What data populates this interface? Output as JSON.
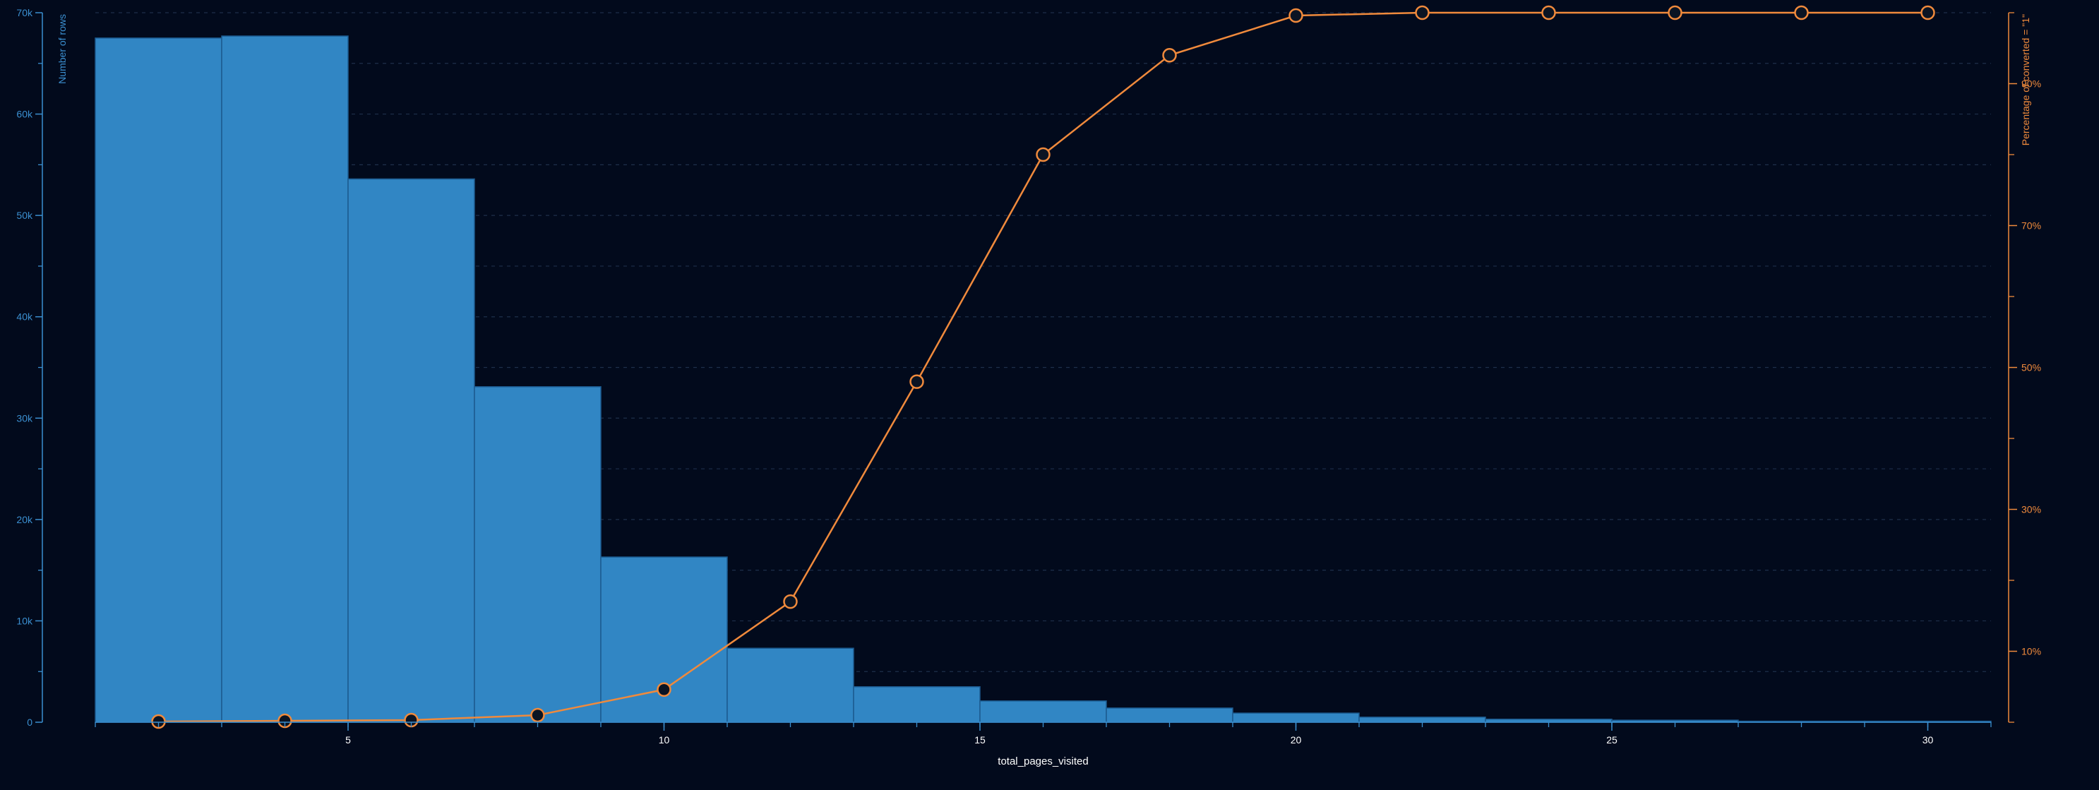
{
  "colors": {
    "background": "#020a1c",
    "bar_fill": "#3186c4",
    "bar_stroke": "#1c5a8f",
    "line": "#f08a3c",
    "marker_fill": "#0b1423",
    "left_axis": "#3b8fd0",
    "right_axis": "#f08a3c",
    "x_axis": "#3b8fd0",
    "grid": "#1e2f4a",
    "text": "#ffffff"
  },
  "chart_data": {
    "type": "bar",
    "xlabel": "total_pages_visited",
    "ylabel_left": "Number of rows",
    "ylabel_right": "Percentage of converted = \"1\"",
    "xlim": [
      1,
      31
    ],
    "ylim_left": [
      0,
      70000
    ],
    "ylim_right": [
      0,
      100
    ],
    "x_ticks": [
      5,
      10,
      15,
      20,
      25,
      30
    ],
    "y_left_ticks": [
      0,
      10000,
      20000,
      30000,
      40000,
      50000,
      60000,
      70000
    ],
    "y_left_tick_labels": [
      "0",
      "10k",
      "20k",
      "30k",
      "40k",
      "50k",
      "60k",
      "70k"
    ],
    "y_right_ticks": [
      10,
      30,
      50,
      70,
      90
    ],
    "y_right_tick_labels": [
      "10%",
      "30%",
      "50%",
      "70%",
      "90%"
    ],
    "grid": true,
    "legend": "none",
    "histogram": {
      "name": "Number of rows",
      "bin_edges": [
        1,
        3,
        5,
        7,
        9,
        11,
        13,
        15,
        17,
        19,
        21,
        23,
        25,
        27,
        29,
        31
      ],
      "values": [
        67500,
        67700,
        53600,
        33100,
        16300,
        7300,
        3500,
        2100,
        1400,
        900,
        500,
        300,
        200,
        100,
        100
      ]
    },
    "line": {
      "name": "Percentage of converted = \"1\"",
      "x": [
        2,
        4,
        6,
        8,
        10,
        12,
        14,
        16,
        18,
        20,
        22,
        24,
        26,
        28,
        30
      ],
      "y": [
        0.1,
        0.2,
        0.3,
        1.0,
        4.6,
        17,
        48,
        80,
        94,
        99.6,
        100,
        100,
        100,
        100,
        100
      ]
    }
  }
}
